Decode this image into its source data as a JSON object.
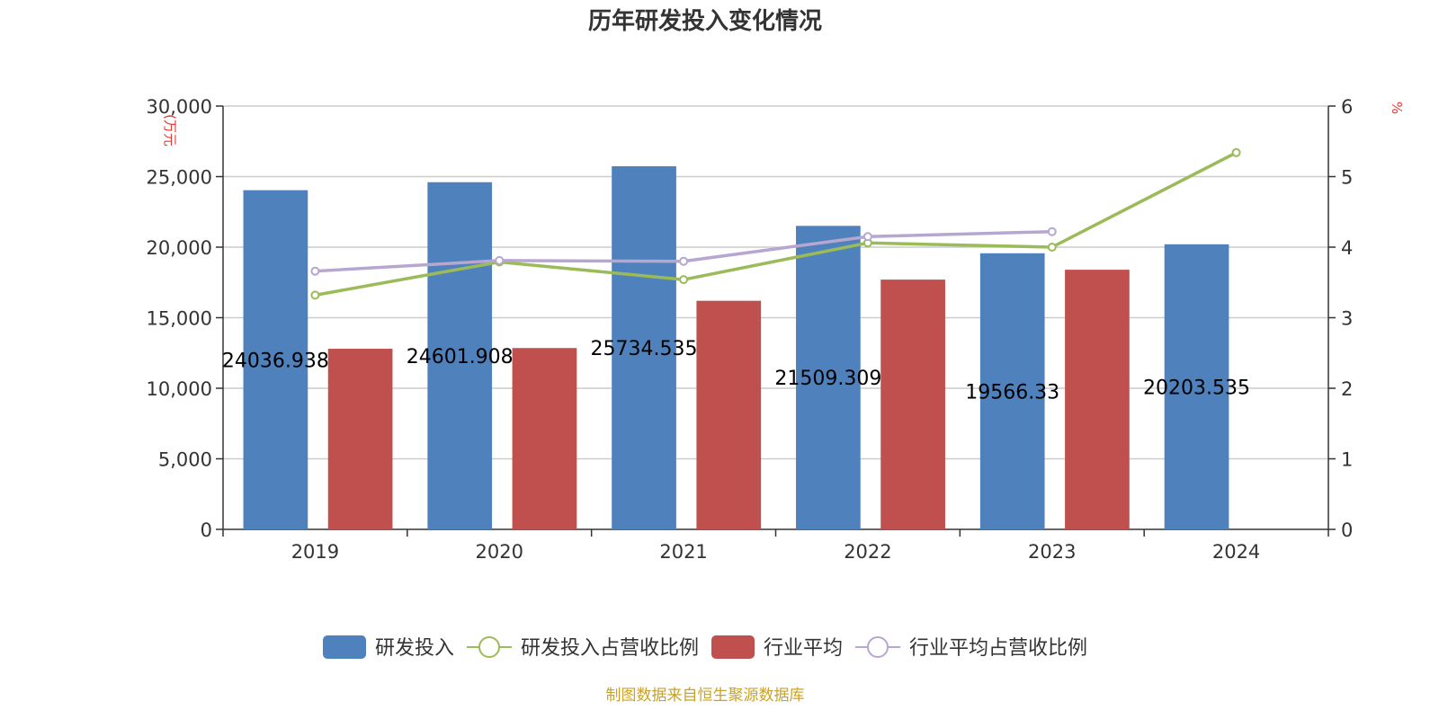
{
  "chart_data": {
    "type": "bar",
    "title": "历年研发投入变化情况",
    "categories": [
      "2019",
      "2020",
      "2021",
      "2022",
      "2023",
      "2024"
    ],
    "y_left": {
      "unit": "(万元",
      "ylim": [
        0,
        30000
      ],
      "ticks": [
        "0",
        "5,000",
        "10,000",
        "15,000",
        "20,000",
        "25,000",
        "30,000"
      ]
    },
    "y_right": {
      "unit": "%",
      "ylim": [
        0,
        6
      ],
      "ticks": [
        "0",
        "1",
        "2",
        "3",
        "4",
        "5",
        "6"
      ]
    },
    "grid": true,
    "legend_position": "bottom",
    "series": [
      {
        "name": "研发投入",
        "kind": "bar",
        "axis": "left",
        "color": "#4f81bd",
        "values": [
          24036.938,
          24601.908,
          25734.535,
          21509.309,
          19566.33,
          20203.535
        ],
        "labels": [
          "24036.938",
          "24601.908",
          "25734.535",
          "21509.309",
          "19566.33",
          "20203.535"
        ]
      },
      {
        "name": "研发投入占营收比例",
        "kind": "line",
        "axis": "right",
        "color": "#9bbb59",
        "values": [
          3.32,
          3.79,
          3.54,
          4.06,
          4.0,
          5.34
        ]
      },
      {
        "name": "行业平均",
        "kind": "bar",
        "axis": "left",
        "color": "#c0504d",
        "values": [
          12800,
          12850,
          16200,
          17700,
          18400,
          null
        ]
      },
      {
        "name": "行业平均占营收比例",
        "kind": "line",
        "axis": "right",
        "color": "#b7a6d0",
        "values": [
          3.66,
          3.81,
          3.8,
          4.15,
          4.22,
          null
        ]
      }
    ],
    "source": "制图数据来自恒生聚源数据库"
  }
}
